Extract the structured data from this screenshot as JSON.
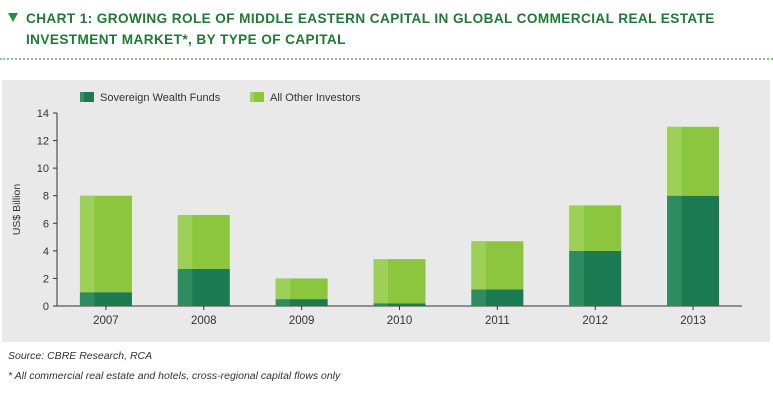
{
  "header": {
    "title": "CHART 1: GROWING ROLE OF MIDDLE EASTERN CAPITAL IN GLOBAL COMMERCIAL REAL ESTATE INVESTMENT MARKET*, BY TYPE OF CAPITAL"
  },
  "footer": {
    "source": "Source: CBRE Research, RCA",
    "footnote": "* All commercial real estate and hotels, cross-regional capital flows only"
  },
  "colors": {
    "title": "#1f7a33",
    "sovereign": "#1b7a52",
    "other": "#8cc63f",
    "panel": "#e9e9ea"
  },
  "chart_data": {
    "type": "bar",
    "stacked": true,
    "title": "",
    "xlabel": "",
    "ylabel": "US$ Billion",
    "ylim": [
      0,
      14
    ],
    "yticks": [
      0,
      2,
      4,
      6,
      8,
      10,
      12,
      14
    ],
    "grid": false,
    "legend": "top-left",
    "categories": [
      "2007",
      "2008",
      "2009",
      "2010",
      "2011",
      "2012",
      "2013"
    ],
    "series": [
      {
        "name": "Sovereign Wealth Funds",
        "values": [
          1.0,
          2.7,
          0.5,
          0.2,
          1.2,
          4.0,
          8.0
        ]
      },
      {
        "name": "All Other Investors",
        "values": [
          7.0,
          3.9,
          1.5,
          3.2,
          3.5,
          3.3,
          5.0
        ]
      }
    ]
  }
}
